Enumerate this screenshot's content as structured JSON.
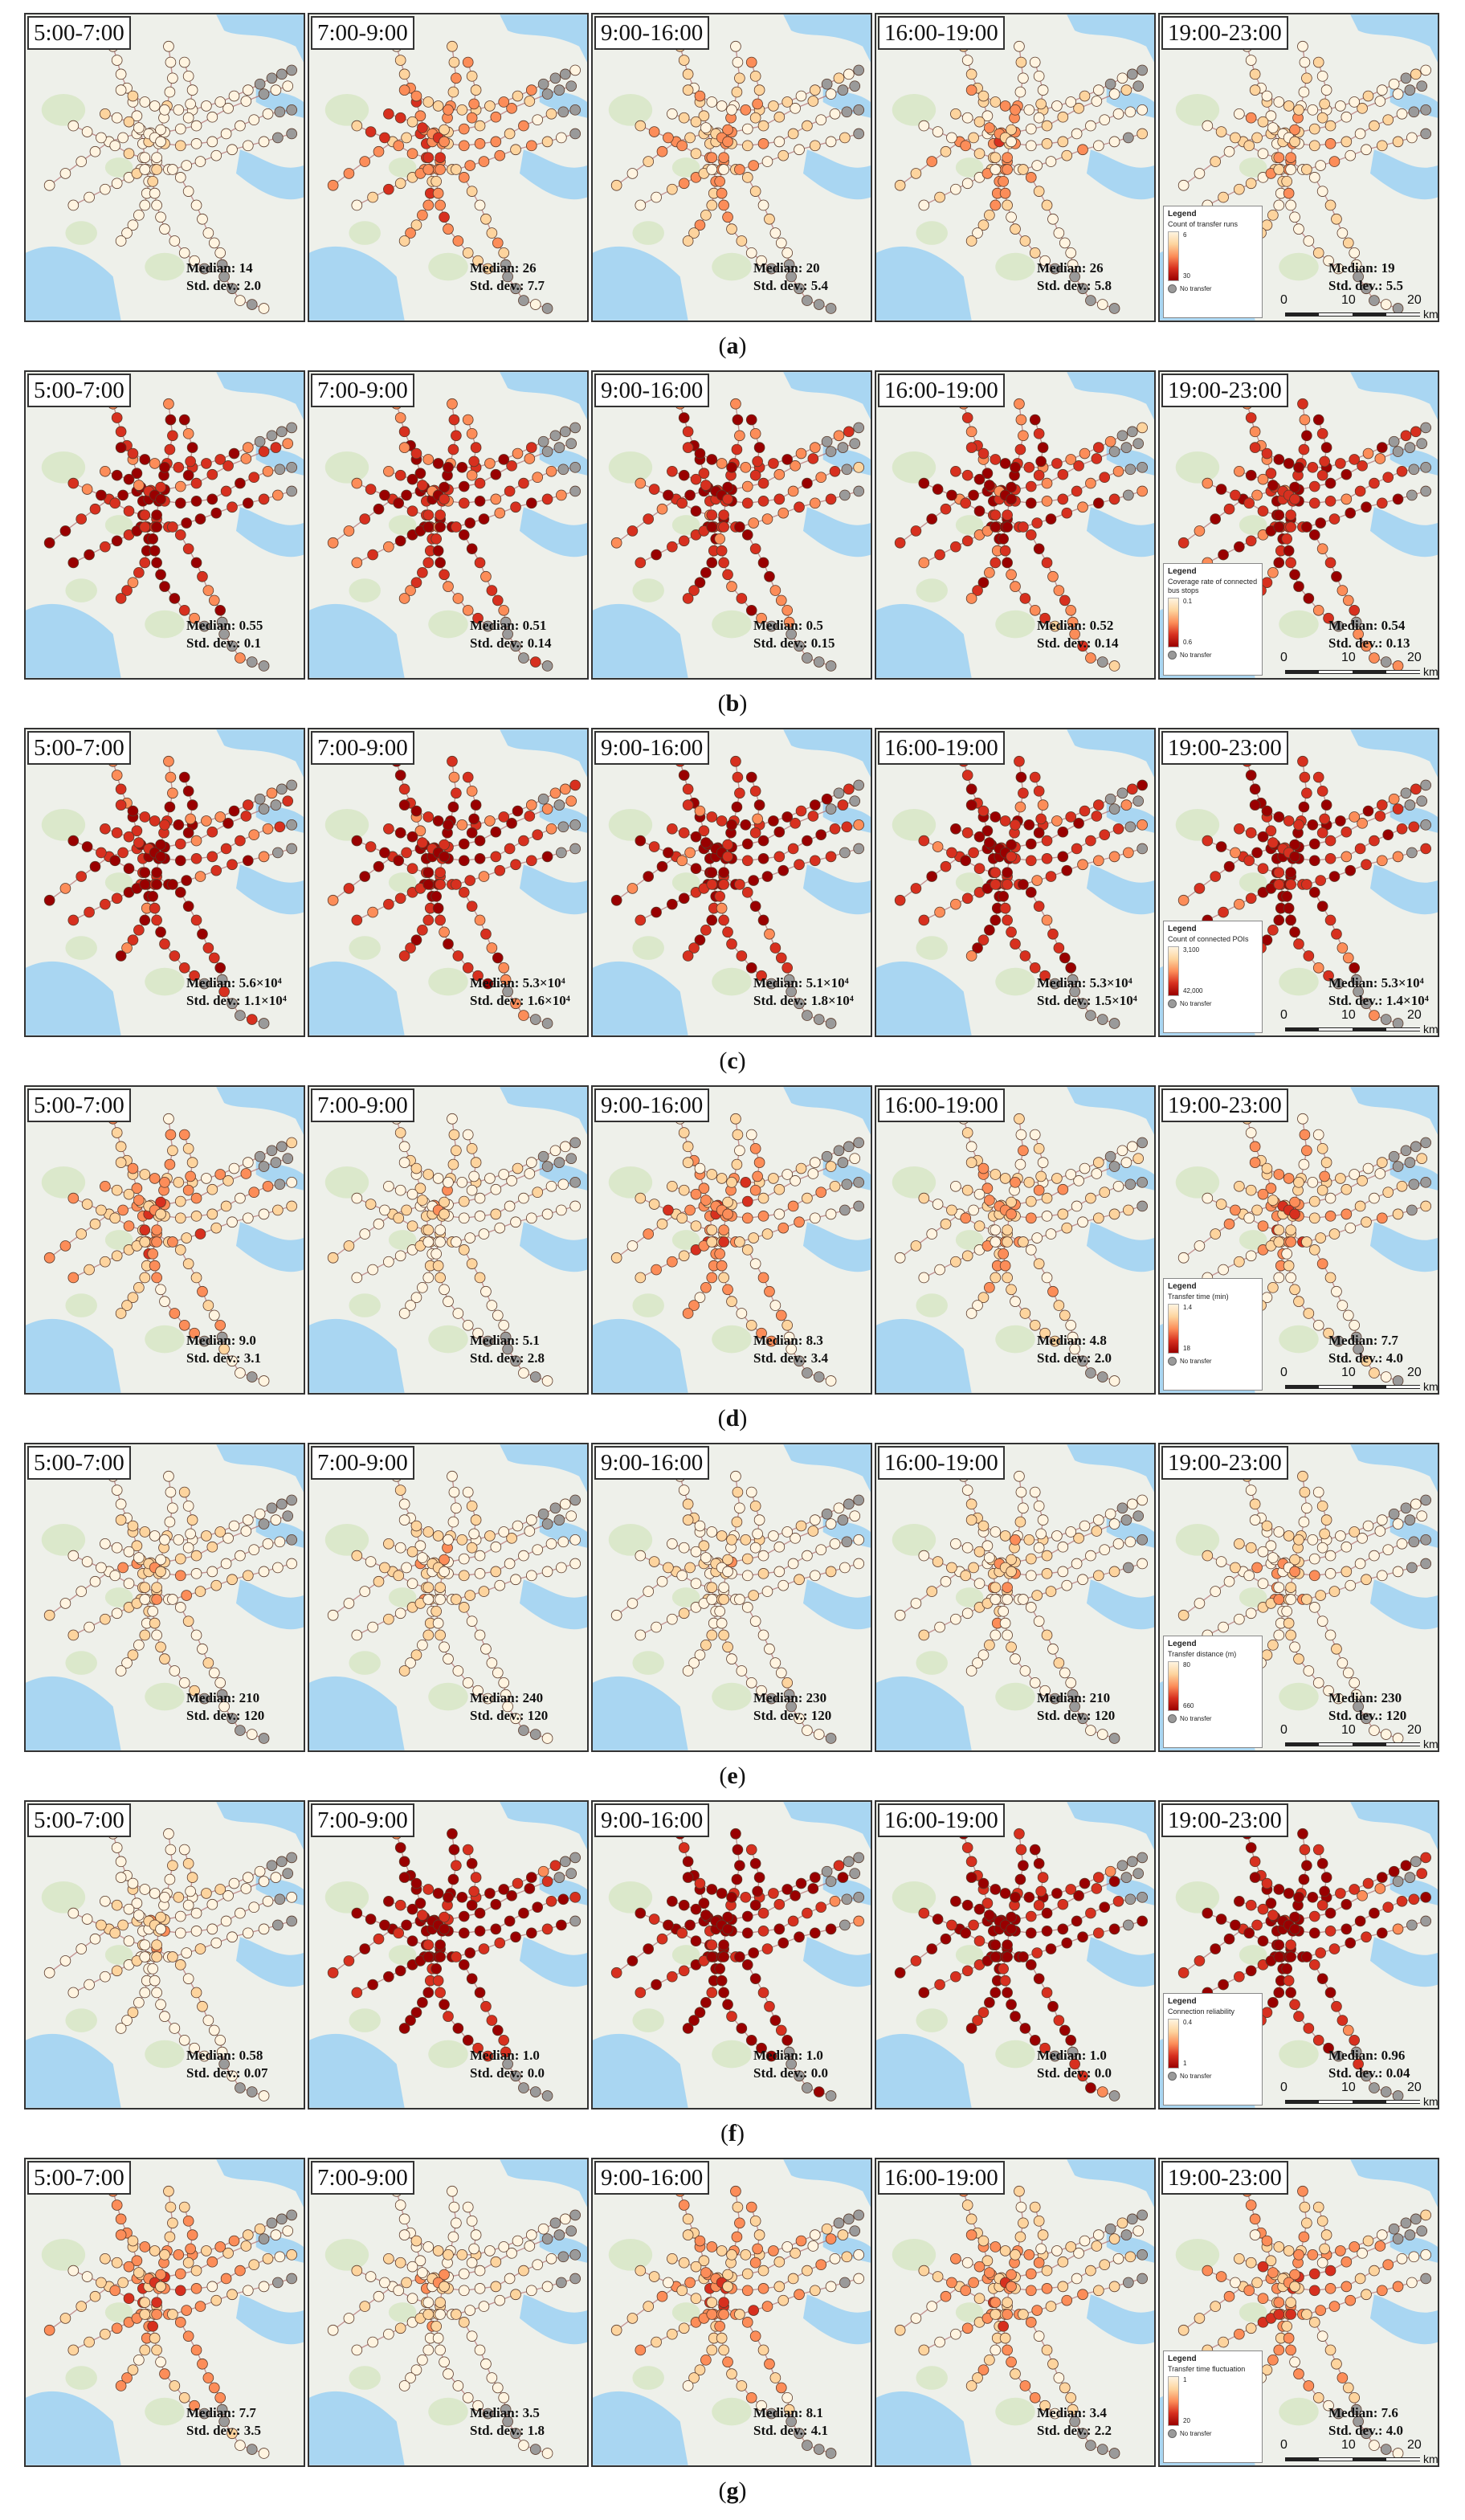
{
  "time_slots": [
    "5:00-7:00",
    "7:00-9:00",
    "9:00-16:00",
    "16:00-19:00",
    "19:00-23:00"
  ],
  "legend_header": "Legend",
  "no_transfer_label": "No transfer",
  "scale_bar": {
    "ticks": [
      "0",
      "10",
      "20"
    ],
    "unit": "km"
  },
  "colors": {
    "ramp": [
      "#fff4e0",
      "#fdd49e",
      "#fc8d59",
      "#d7301f",
      "#990000"
    ],
    "no_transfer": "#9a9a9a",
    "water": "#a9d6f2",
    "green": "#d7e6c6",
    "land": "#eef0ea"
  },
  "icons": {
    "station": "circle-marker",
    "no_transfer_station": "grey-circle-marker"
  },
  "panel_rows": [
    {
      "caption": "a",
      "legend_variable": "Count of transfer runs",
      "legend_max": "6",
      "legend_min": "30",
      "panels": [
        {
          "median": "Median: 14",
          "std": "Std. dev.: 2.0",
          "intensity": 0.15
        },
        {
          "median": "Median: 26",
          "std": "Std. dev.: 7.7",
          "intensity": 0.55
        },
        {
          "median": "Median: 20",
          "std": "Std. dev.: 5.4",
          "intensity": 0.4
        },
        {
          "median": "Median: 26",
          "std": "Std. dev.: 5.8",
          "intensity": 0.4
        },
        {
          "median": "Median: 19",
          "std": "Std. dev.: 5.5",
          "intensity": 0.35
        }
      ]
    },
    {
      "caption": "b",
      "legend_variable": "Coverage rate of connected bus stops",
      "legend_max": "0.1",
      "legend_min": "0.6",
      "panels": [
        {
          "median": "Median: 0.55",
          "std": "Std. dev.: 0.1",
          "intensity": 0.85
        },
        {
          "median": "Median: 0.51",
          "std": "Std. dev.: 0.14",
          "intensity": 0.8
        },
        {
          "median": "Median: 0.5",
          "std": "Std. dev.: 0.15",
          "intensity": 0.8
        },
        {
          "median": "Median: 0.52",
          "std": "Std. dev.: 0.14",
          "intensity": 0.8
        },
        {
          "median": "Median: 0.54",
          "std": "Std. dev.: 0.13",
          "intensity": 0.82
        }
      ]
    },
    {
      "caption": "c",
      "legend_variable": "Count of connected POIs",
      "legend_max": "3,100",
      "legend_min": "42,000",
      "panels": [
        {
          "median": "Median: 5.6×10⁴",
          "std": "Std. dev.: 1.1×10⁴",
          "intensity": 0.88
        },
        {
          "median": "Median: 5.3×10⁴",
          "std": "Std. dev.: 1.6×10⁴",
          "intensity": 0.85
        },
        {
          "median": "Median: 5.1×10⁴",
          "std": "Std. dev.: 1.8×10⁴",
          "intensity": 0.85
        },
        {
          "median": "Median: 5.3×10⁴",
          "std": "Std. dev.: 1.5×10⁴",
          "intensity": 0.85
        },
        {
          "median": "Median: 5.3×10⁴",
          "std": "Std. dev.: 1.4×10⁴",
          "intensity": 0.86
        }
      ]
    },
    {
      "caption": "d",
      "legend_variable": "Transfer time (min)",
      "legend_max": "1.4",
      "legend_min": "18",
      "panels": [
        {
          "median": "Median: 9.0",
          "std": "Std. dev.: 3.1",
          "intensity": 0.5
        },
        {
          "median": "Median: 5.1",
          "std": "Std. dev.: 2.8",
          "intensity": 0.28
        },
        {
          "median": "Median: 8.3",
          "std": "Std. dev.: 3.4",
          "intensity": 0.5
        },
        {
          "median": "Median: 4.8",
          "std": "Std. dev.: 2.0",
          "intensity": 0.4
        },
        {
          "median": "Median: 7.7",
          "std": "Std. dev.: 4.0",
          "intensity": 0.45
        }
      ]
    },
    {
      "caption": "e",
      "legend_variable": "Transfer distance (m)",
      "legend_max": "80",
      "legend_min": "660",
      "panels": [
        {
          "median": "Median: 210",
          "std": "Std. dev.: 120",
          "intensity": 0.3
        },
        {
          "median": "Median: 240",
          "std": "Std. dev.: 120",
          "intensity": 0.28
        },
        {
          "median": "Median: 230",
          "std": "Std. dev.: 120",
          "intensity": 0.28
        },
        {
          "median": "Median: 210",
          "std": "Std. dev.: 120",
          "intensity": 0.3
        },
        {
          "median": "Median: 230",
          "std": "Std. dev.: 120",
          "intensity": 0.3
        }
      ]
    },
    {
      "caption": "f",
      "legend_variable": "Connection reliability",
      "legend_max": "0.4",
      "legend_min": "1",
      "panels": [
        {
          "median": "Median: 0.58",
          "std": "Std. dev.: 0.07",
          "intensity": 0.25
        },
        {
          "median": "Median: 1.0",
          "std": "Std. dev.: 0.0",
          "intensity": 0.96
        },
        {
          "median": "Median: 1.0",
          "std": "Std. dev.: 0.0",
          "intensity": 0.96
        },
        {
          "median": "Median: 1.0",
          "std": "Std. dev.: 0.0",
          "intensity": 0.96
        },
        {
          "median": "Median: 0.96",
          "std": "Std. dev.: 0.04",
          "intensity": 0.93
        }
      ]
    },
    {
      "caption": "g",
      "legend_variable": "Transfer time fluctuation",
      "legend_max": "1",
      "legend_min": "20",
      "panels": [
        {
          "median": "Median: 7.7",
          "std": "Std. dev.: 3.5",
          "intensity": 0.5
        },
        {
          "median": "Median: 3.5",
          "std": "Std. dev.: 1.8",
          "intensity": 0.25
        },
        {
          "median": "Median: 8.1",
          "std": "Std. dev.: 4.1",
          "intensity": 0.5
        },
        {
          "median": "Median: 3.4",
          "std": "Std. dev.: 2.2",
          "intensity": 0.45
        },
        {
          "median": "Median: 7.6",
          "std": "Std. dev.: 4.0",
          "intensity": 0.5
        }
      ]
    }
  ]
}
